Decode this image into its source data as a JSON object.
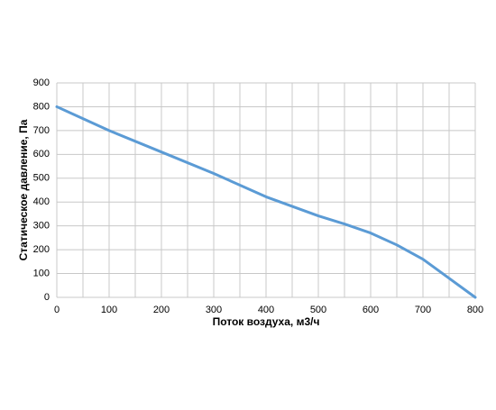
{
  "chart_data": {
    "type": "line",
    "x_label": "Поток воздуха, м3/ч",
    "y_label": "Статическое давление, Па",
    "x": [
      0,
      100,
      200,
      300,
      400,
      500,
      550,
      600,
      650,
      700,
      750,
      800
    ],
    "series": [
      {
        "color": "#5b9bd5",
        "values": [
          800,
          700,
          610,
          520,
          422,
          342,
          308,
          270,
          220,
          160,
          80,
          0
        ]
      }
    ],
    "xlim": [
      0,
      800
    ],
    "xticks": [
      0,
      100,
      200,
      300,
      400,
      500,
      600,
      700,
      800
    ],
    "xminorticks": [
      50,
      150,
      250,
      350,
      450,
      550,
      650,
      750
    ],
    "ylim": [
      0,
      900
    ],
    "yticks": [
      0,
      100,
      200,
      300,
      400,
      500,
      600,
      700,
      800,
      900
    ],
    "grid": true
  }
}
